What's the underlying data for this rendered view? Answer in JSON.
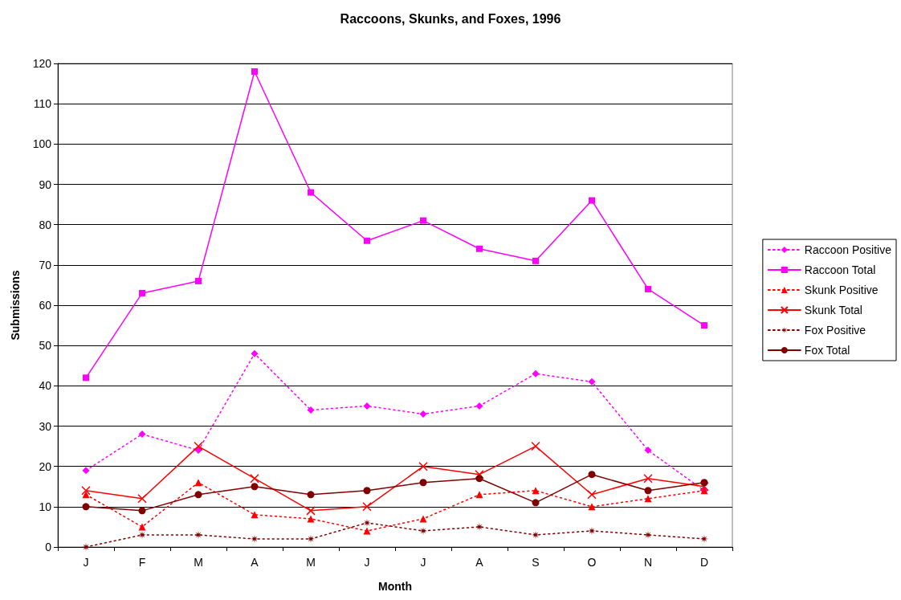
{
  "chart_data": {
    "type": "line",
    "title": "Raccoons, Skunks, and Foxes, 1996",
    "xlabel": "Month",
    "ylabel": "Submissions",
    "categories": [
      "J",
      "F",
      "M",
      "A",
      "M",
      "J",
      "J",
      "A",
      "S",
      "O",
      "N",
      "D"
    ],
    "series": [
      {
        "name": "Raccoon Positive",
        "color": "#ff00ff",
        "marker": "diamond",
        "line_style": "dotted",
        "values": [
          19,
          28,
          24,
          48,
          34,
          35,
          33,
          35,
          43,
          41,
          24,
          14
        ]
      },
      {
        "name": "Raccoon Total",
        "color": "#ff00ff",
        "marker": "square",
        "line_style": "solid",
        "values": [
          42,
          63,
          66,
          118,
          88,
          76,
          81,
          74,
          71,
          86,
          64,
          55
        ]
      },
      {
        "name": "Skunk Positive",
        "color": "#ff0000",
        "marker": "triangle",
        "line_style": "dotted",
        "values": [
          13,
          5,
          16,
          8,
          7,
          4,
          7,
          13,
          14,
          10,
          12,
          14
        ]
      },
      {
        "name": "Skunk Total",
        "color": "#ff0000",
        "marker": "cross",
        "line_style": "solid",
        "values": [
          14,
          12,
          25,
          17,
          9,
          10,
          20,
          18,
          25,
          13,
          17,
          15
        ]
      },
      {
        "name": "Fox Positive",
        "color": "#800000",
        "marker": "star",
        "line_style": "dotted",
        "values": [
          0,
          3,
          3,
          2,
          2,
          6,
          4,
          5,
          3,
          4,
          3,
          2
        ]
      },
      {
        "name": "Fox Total",
        "color": "#800000",
        "marker": "circle",
        "line_style": "solid",
        "values": [
          10,
          9,
          13,
          15,
          13,
          14,
          16,
          17,
          11,
          18,
          14,
          16
        ]
      }
    ],
    "ylim": [
      0,
      120
    ],
    "yticks": [
      0,
      10,
      20,
      30,
      40,
      50,
      60,
      70,
      80,
      90,
      100,
      110,
      120
    ],
    "grid": "y",
    "legend": "right"
  }
}
